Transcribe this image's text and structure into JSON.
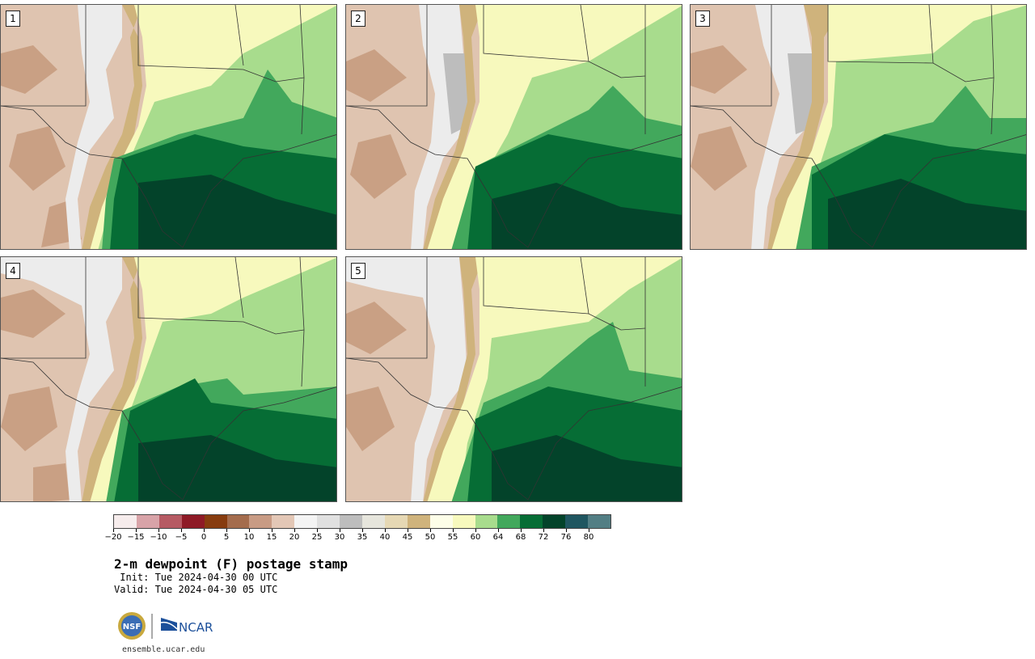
{
  "panels": [
    {
      "label": "1"
    },
    {
      "label": "2"
    },
    {
      "label": "3"
    },
    {
      "label": "4"
    },
    {
      "label": "5"
    }
  ],
  "colorbar": {
    "colors": [
      "#f6ecec",
      "#d8a3a8",
      "#b65a63",
      "#8e1a26",
      "#873c0f",
      "#a46c4d",
      "#c89b84",
      "#e3c7b6",
      "#f4f4f4",
      "#e0e0e0",
      "#bdbdbd",
      "#e6e5dc",
      "#e6d8b4",
      "#cfb37c",
      "#fdfee8",
      "#f7f9bd",
      "#a8dc8d",
      "#42a85c",
      "#066d35",
      "#03432a",
      "#1f5660",
      "#527e84"
    ],
    "ticks": [
      "−20",
      "−15",
      "−10",
      "−5",
      "0",
      "5",
      "10",
      "15",
      "20",
      "25",
      "30",
      "35",
      "40",
      "45",
      "50",
      "55",
      "60",
      "64",
      "68",
      "72",
      "76",
      "80"
    ]
  },
  "title": "2-m dewpoint (F) postage stamp",
  "init": " Init: Tue 2024-04-30 00 UTC",
  "valid": "Valid: Tue 2024-04-30 05 UTC",
  "logos": {
    "left": "NSF",
    "right": "NCAR"
  },
  "website": "ensemble.ucar.edu"
}
